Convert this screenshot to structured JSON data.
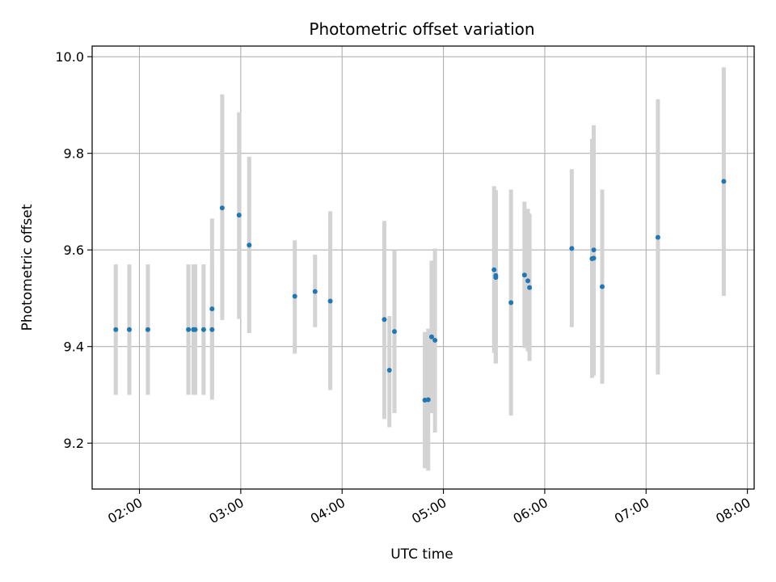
{
  "chart_data": {
    "type": "scatter",
    "title": "Photometric offset variation",
    "xlabel": "UTC time",
    "ylabel": "Photometric offset",
    "x_unit": "UTC hh:mm",
    "xlim": [
      "01:32",
      "08:04"
    ],
    "ylim": [
      9.105,
      10.022
    ],
    "x_ticks": [
      "02:00",
      "03:00",
      "04:00",
      "05:00",
      "06:00",
      "07:00",
      "08:00"
    ],
    "y_ticks": [
      "9.2",
      "9.4",
      "9.6",
      "9.8",
      "10.0"
    ],
    "grid": true,
    "point_color": "#1f77b4",
    "errorbar_color": "#d3d3d3",
    "series": [
      {
        "points": [
          {
            "x": "01:46",
            "y": 9.435,
            "ylow": 9.3,
            "yhigh": 9.57
          },
          {
            "x": "01:54",
            "y": 9.435,
            "ylow": 9.3,
            "yhigh": 9.57
          },
          {
            "x": "02:05",
            "y": 9.435,
            "ylow": 9.3,
            "yhigh": 9.57
          },
          {
            "x": "02:29",
            "y": 9.435,
            "ylow": 9.3,
            "yhigh": 9.57
          },
          {
            "x": "02:32",
            "y": 9.435,
            "ylow": 9.3,
            "yhigh": 9.57
          },
          {
            "x": "02:33",
            "y": 9.435,
            "ylow": 9.3,
            "yhigh": 9.57
          },
          {
            "x": "02:38",
            "y": 9.435,
            "ylow": 9.3,
            "yhigh": 9.57
          },
          {
            "x": "02:43",
            "y": 9.435,
            "ylow": 9.3,
            "yhigh": 9.57
          },
          {
            "x": "02:43",
            "y": 9.478,
            "ylow": 9.29,
            "yhigh": 9.665
          },
          {
            "x": "02:49",
            "y": 9.687,
            "ylow": 9.455,
            "yhigh": 9.922
          },
          {
            "x": "02:59",
            "y": 9.672,
            "ylow": 9.457,
            "yhigh": 9.885
          },
          {
            "x": "03:05",
            "y": 9.61,
            "ylow": 9.428,
            "yhigh": 9.793
          },
          {
            "x": "03:32",
            "y": 9.504,
            "ylow": 9.385,
            "yhigh": 9.62
          },
          {
            "x": "03:44",
            "y": 9.514,
            "ylow": 9.44,
            "yhigh": 9.59
          },
          {
            "x": "03:53",
            "y": 9.494,
            "ylow": 9.31,
            "yhigh": 9.68
          },
          {
            "x": "04:25",
            "y": 9.456,
            "ylow": 9.25,
            "yhigh": 9.66
          },
          {
            "x": "04:28",
            "y": 9.351,
            "ylow": 9.233,
            "yhigh": 9.463
          },
          {
            "x": "04:31",
            "y": 9.431,
            "ylow": 9.262,
            "yhigh": 9.6
          },
          {
            "x": "04:49",
            "y": 9.289,
            "ylow": 9.148,
            "yhigh": 9.43
          },
          {
            "x": "04:51",
            "y": 9.29,
            "ylow": 9.143,
            "yhigh": 9.437
          },
          {
            "x": "04:53",
            "y": 9.42,
            "ylow": 9.262,
            "yhigh": 9.578
          },
          {
            "x": "04:55",
            "y": 9.413,
            "ylow": 9.222,
            "yhigh": 9.603
          },
          {
            "x": "05:30",
            "y": 9.559,
            "ylow": 9.387,
            "yhigh": 9.732
          },
          {
            "x": "05:31",
            "y": 9.547,
            "ylow": 9.365,
            "yhigh": 9.724
          },
          {
            "x": "05:31",
            "y": 9.543,
            "ylow": 9.365,
            "yhigh": 9.721
          },
          {
            "x": "05:40",
            "y": 9.491,
            "ylow": 9.257,
            "yhigh": 9.725
          },
          {
            "x": "05:48",
            "y": 9.548,
            "ylow": 9.397,
            "yhigh": 9.7
          },
          {
            "x": "05:50",
            "y": 9.536,
            "ylow": 9.39,
            "yhigh": 9.685
          },
          {
            "x": "05:51",
            "y": 9.522,
            "ylow": 9.37,
            "yhigh": 9.675
          },
          {
            "x": "06:16",
            "y": 9.603,
            "ylow": 9.44,
            "yhigh": 9.767
          },
          {
            "x": "06:28",
            "y": 9.582,
            "ylow": 9.335,
            "yhigh": 9.83
          },
          {
            "x": "06:29",
            "y": 9.6,
            "ylow": 9.34,
            "yhigh": 9.858
          },
          {
            "x": "06:29",
            "y": 9.583,
            "ylow": 9.34,
            "yhigh": 9.83
          },
          {
            "x": "06:34",
            "y": 9.524,
            "ylow": 9.323,
            "yhigh": 9.725
          },
          {
            "x": "07:07",
            "y": 9.626,
            "ylow": 9.342,
            "yhigh": 9.912
          },
          {
            "x": "07:46",
            "y": 9.742,
            "ylow": 9.505,
            "yhigh": 9.978
          }
        ]
      }
    ]
  }
}
